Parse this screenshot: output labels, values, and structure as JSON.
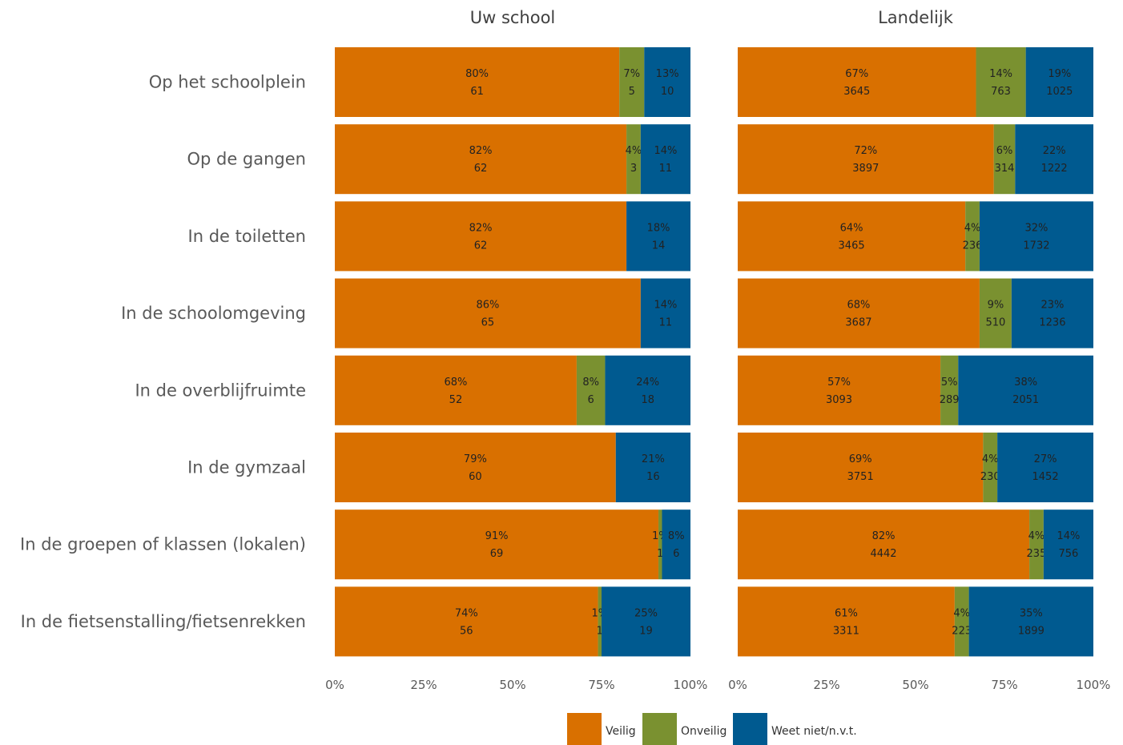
{
  "chart_data": {
    "type": "bar",
    "orientation": "horizontal",
    "stacked": "percent",
    "categories": [
      "Op het schoolplein",
      "Op de gangen",
      "In de toiletten",
      "In de schoolomgeving",
      "In de overblijfruimte",
      "In de gymzaal",
      "In de groepen of klassen (lokalen)",
      "In de fietsenstalling/fietsenrekken"
    ],
    "xticks": [
      "0%",
      "25%",
      "50%",
      "75%",
      "100%"
    ],
    "xlim": [
      0,
      100
    ],
    "legend": {
      "position": "bottom",
      "items": [
        {
          "name": "Veilig",
          "color": "#D97000"
        },
        {
          "name": "Onveilig",
          "color": "#7A9130"
        },
        {
          "name": "Weet niet/n.v.t.",
          "color": "#005A90"
        }
      ]
    },
    "panels": [
      {
        "title": "Uw school",
        "series": [
          {
            "name": "Veilig",
            "percent": [
              80,
              82,
              82,
              86,
              68,
              79,
              91,
              74
            ],
            "count": [
              61,
              62,
              62,
              65,
              52,
              60,
              69,
              56
            ]
          },
          {
            "name": "Onveilig",
            "percent": [
              7,
              4,
              0,
              0,
              8,
              0,
              1,
              1
            ],
            "count": [
              5,
              3,
              0,
              0,
              6,
              0,
              1,
              1
            ]
          },
          {
            "name": "Weet niet/n.v.t.",
            "percent": [
              13,
              14,
              18,
              14,
              24,
              21,
              8,
              25
            ],
            "count": [
              10,
              11,
              14,
              11,
              18,
              16,
              6,
              19
            ]
          }
        ]
      },
      {
        "title": "Landelijk",
        "series": [
          {
            "name": "Veilig",
            "percent": [
              67,
              72,
              64,
              68,
              57,
              69,
              82,
              61
            ],
            "count": [
              3645,
              3897,
              3465,
              3687,
              3093,
              3751,
              4442,
              3311
            ]
          },
          {
            "name": "Onveilig",
            "percent": [
              14,
              6,
              4,
              9,
              5,
              4,
              4,
              4
            ],
            "count": [
              763,
              314,
              236,
              510,
              289,
              230,
              235,
              223
            ]
          },
          {
            "name": "Weet niet/n.v.t.",
            "percent": [
              19,
              22,
              32,
              23,
              38,
              27,
              14,
              35
            ],
            "count": [
              1025,
              1222,
              1732,
              1236,
              2051,
              1452,
              756,
              1899
            ]
          }
        ]
      }
    ]
  }
}
